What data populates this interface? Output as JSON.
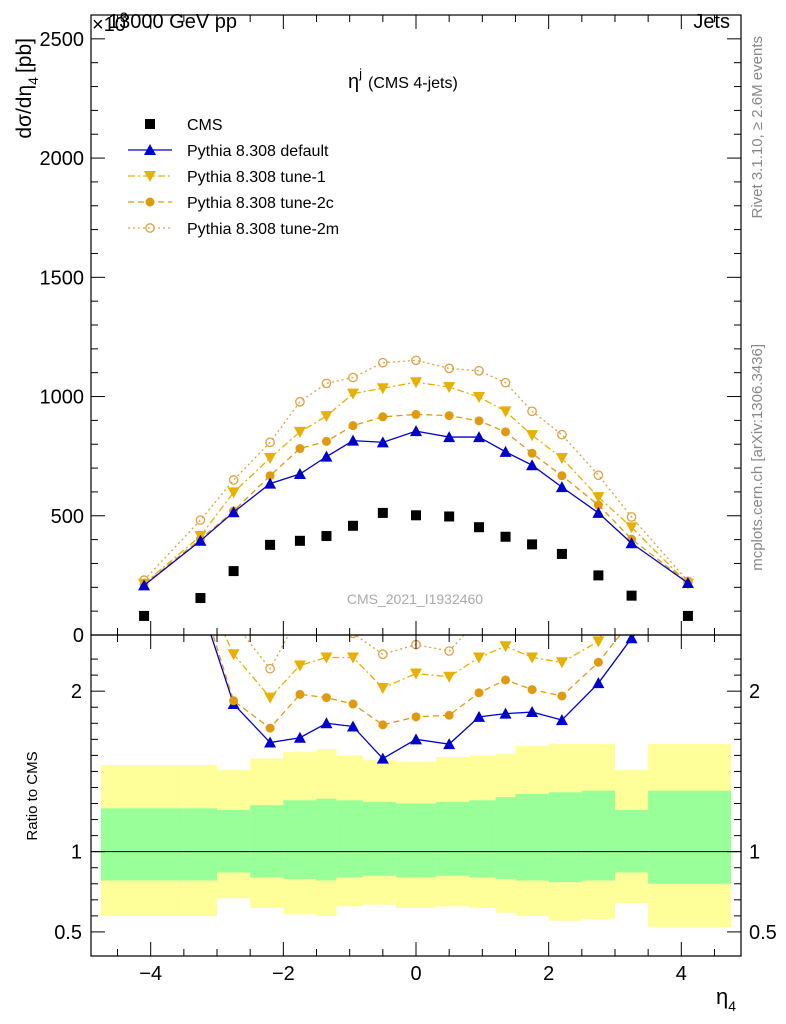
{
  "header": {
    "beam": "13000 GeV pp",
    "category": "Jets",
    "y_exponent": "×10",
    "y_exponent_power": "3"
  },
  "side_text": {
    "rivet": "Rivet 3.1.10, ≥ 2.6M events",
    "mcplots": "mcplots.cern.ch [arXiv:1306.3436]"
  },
  "chart_data": [
    {
      "type": "scatter",
      "title": "η",
      "title_sup": "j",
      "title_suffix": "(CMS 4-jets)",
      "watermark": "CMS_2021_I1932460",
      "ylabel": "dσ/dη",
      "ylabel_sub": "4",
      "ylabel_unit": "[pb]",
      "ylim": [
        0,
        2600
      ],
      "y_scale_factor": 1000,
      "xlim": [
        -4.9,
        4.9
      ],
      "yticks": [
        0,
        500,
        1000,
        1500,
        2000,
        2500
      ],
      "ytick_labels": [
        "0",
        "500",
        "1000",
        "1500",
        "2000",
        "2500"
      ],
      "legend_placement": "top-left",
      "x": [
        -4.1,
        -3.25,
        -2.75,
        -2.2,
        -1.75,
        -1.35,
        -0.95,
        -0.5,
        0.0,
        0.5,
        0.95,
        1.35,
        1.75,
        2.2,
        2.75,
        3.25,
        4.1
      ],
      "series": [
        {
          "name": "CMS",
          "color": "#000000",
          "marker": "square",
          "line": "none",
          "values": [
            80,
            155,
            268,
            378,
            395,
            415,
            458,
            512,
            502,
            497,
            452,
            412,
            380,
            340,
            250,
            165,
            80
          ]
        },
        {
          "name": "Pythia 8.308 default",
          "color": "#0000cc",
          "marker": "triangle-up",
          "line": "solid",
          "values": [
            208,
            395,
            515,
            635,
            675,
            748,
            815,
            808,
            855,
            830,
            830,
            768,
            712,
            620,
            512,
            385,
            218
          ]
        },
        {
          "name": "Pythia 8.308 tune-1",
          "color": "#e8b000",
          "marker": "triangle-down",
          "line": "dashdot",
          "values": [
            215,
            415,
            598,
            742,
            852,
            918,
            1012,
            1035,
            1060,
            1040,
            998,
            938,
            838,
            742,
            578,
            452,
            215
          ]
        },
        {
          "name": "Pythia 8.308 tune-2c",
          "color": "#e09a10",
          "marker": "circle",
          "line": "dashed",
          "values": [
            212,
            402,
            520,
            668,
            782,
            812,
            878,
            915,
            925,
            920,
            898,
            852,
            762,
            668,
            545,
            402,
            220
          ]
        },
        {
          "name": "Pythia 8.308 tune-2m",
          "color": "#e0a040",
          "marker": "circle-open",
          "line": "dotted",
          "values": [
            230,
            482,
            650,
            808,
            978,
            1055,
            1080,
            1142,
            1152,
            1118,
            1108,
            1058,
            938,
            840,
            670,
            495,
            225
          ]
        }
      ]
    },
    {
      "type": "area",
      "xlabel": "η",
      "xlabel_sub": "4",
      "ylabel": "Ratio to CMS",
      "ylim": [
        0.35,
        2.35
      ],
      "yticks": [
        0.5,
        1,
        2
      ],
      "ytick_labels": [
        "0.5",
        "1",
        "2"
      ],
      "xticks": [
        -4,
        -2,
        0,
        2,
        4
      ],
      "xtick_labels": [
        "−4",
        "−2",
        "0",
        "2",
        "4"
      ],
      "bin_edges": [
        -4.75,
        -3.5,
        -3.0,
        -2.5,
        -2.0,
        -1.5,
        -1.2,
        -0.8,
        -0.3,
        0.3,
        0.8,
        1.2,
        1.5,
        2.0,
        2.5,
        3.0,
        3.5,
        4.75
      ],
      "band_inner_low": [
        0.82,
        0.82,
        0.87,
        0.84,
        0.83,
        0.82,
        0.84,
        0.85,
        0.84,
        0.85,
        0.84,
        0.83,
        0.82,
        0.81,
        0.82,
        0.87,
        0.8
      ],
      "band_inner_high": [
        1.27,
        1.27,
        1.26,
        1.29,
        1.32,
        1.33,
        1.32,
        1.31,
        1.3,
        1.31,
        1.32,
        1.34,
        1.36,
        1.37,
        1.38,
        1.26,
        1.38
      ],
      "band_outer_low": [
        0.6,
        0.6,
        0.71,
        0.65,
        0.61,
        0.6,
        0.66,
        0.67,
        0.65,
        0.66,
        0.65,
        0.62,
        0.6,
        0.57,
        0.58,
        0.68,
        0.53
      ],
      "band_outer_high": [
        1.54,
        1.54,
        1.51,
        1.58,
        1.62,
        1.64,
        1.6,
        1.57,
        1.56,
        1.59,
        1.6,
        1.61,
        1.66,
        1.67,
        1.67,
        1.51,
        1.67
      ],
      "ratio_series": [
        {
          "name": "Pythia 8.308 default",
          "values": [
            2.6,
            2.55,
            1.92,
            1.68,
            1.71,
            1.8,
            1.78,
            1.58,
            1.7,
            1.67,
            1.84,
            1.86,
            1.87,
            1.82,
            2.05,
            2.33,
            2.7
          ]
        },
        {
          "name": "Pythia 8.308 tune-1",
          "values": [
            2.7,
            2.68,
            2.23,
            1.96,
            2.16,
            2.21,
            2.21,
            2.02,
            2.11,
            2.09,
            2.21,
            2.28,
            2.21,
            2.18,
            2.31,
            2.74,
            2.7
          ]
        },
        {
          "name": "Pythia 8.308 tune-2c",
          "values": [
            2.65,
            2.6,
            1.94,
            1.77,
            1.98,
            1.96,
            1.92,
            1.79,
            1.84,
            1.85,
            1.99,
            2.07,
            2.01,
            1.97,
            2.18,
            2.44,
            2.75
          ]
        },
        {
          "name": "Pythia 8.308 tune-2m",
          "values": [
            2.85,
            3.1,
            2.43,
            2.14,
            2.48,
            2.54,
            2.36,
            2.23,
            2.29,
            2.25,
            2.45,
            2.57,
            2.47,
            2.47,
            2.68,
            3.0,
            2.8
          ]
        }
      ]
    }
  ]
}
